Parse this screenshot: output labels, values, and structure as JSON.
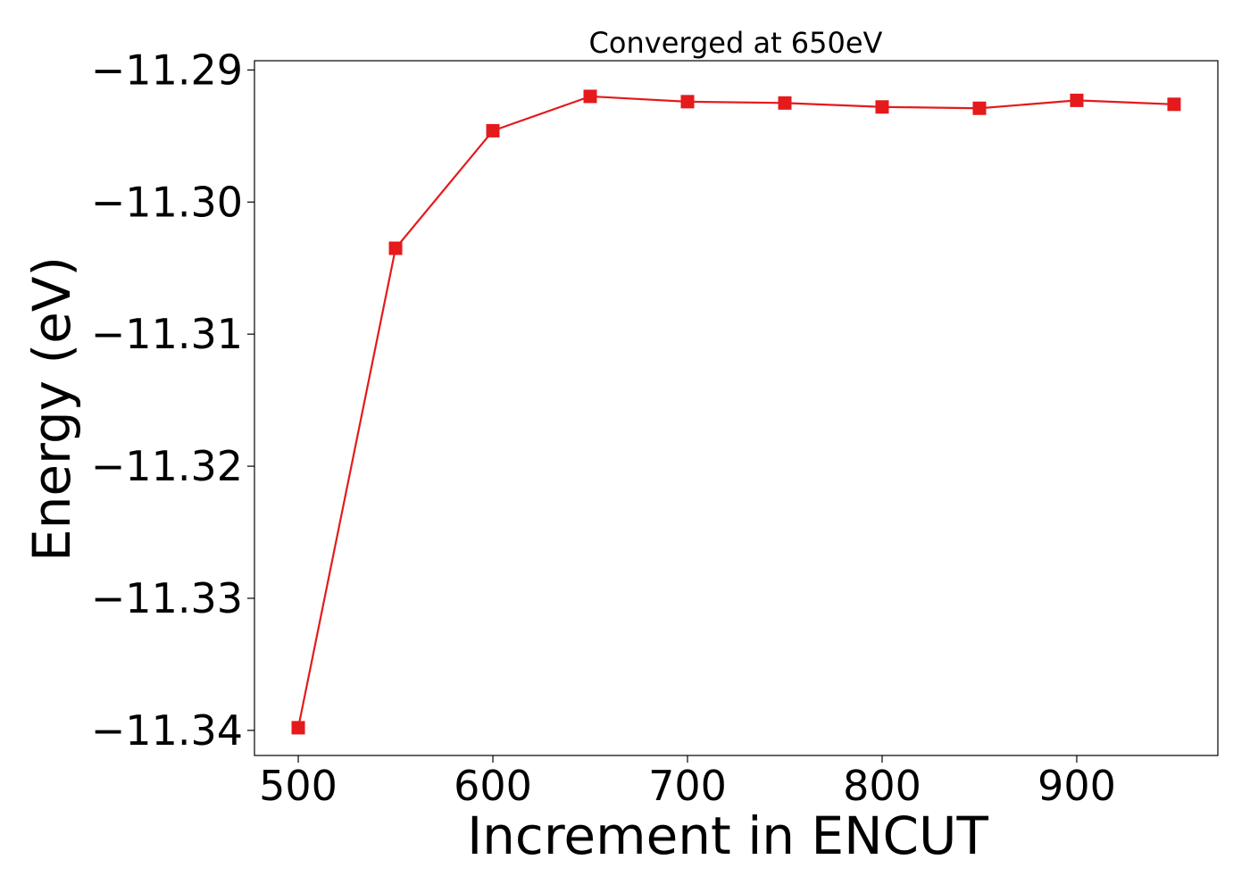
{
  "chart_data": {
    "type": "line",
    "title": "Converged at 650eV",
    "xlabel": "Increment in ENCUT",
    "ylabel": "Energy (eV)",
    "x": [
      500,
      550,
      600,
      650,
      700,
      750,
      800,
      850,
      900,
      950
    ],
    "series": [
      {
        "values": [
          -11.3398,
          -11.3035,
          -11.2946,
          -11.292,
          -11.2924,
          -11.2925,
          -11.2928,
          -11.2929,
          -11.2923,
          -11.2926
        ],
        "color": "#e41a1c",
        "marker": "square"
      }
    ],
    "xlim": [
      477.5,
      972.5
    ],
    "ylim": [
      -11.3419,
      -11.2893
    ],
    "xticks": [
      500,
      600,
      700,
      800,
      900
    ],
    "xtick_labels": [
      "500",
      "600",
      "700",
      "800",
      "900"
    ],
    "yticks": [
      -11.34,
      -11.33,
      -11.32,
      -11.31,
      -11.3,
      -11.29
    ],
    "ytick_labels": [
      "−11.34",
      "−11.33",
      "−11.32",
      "−11.31",
      "−11.30",
      "−11.29"
    ],
    "grid": false,
    "legend": false
  }
}
